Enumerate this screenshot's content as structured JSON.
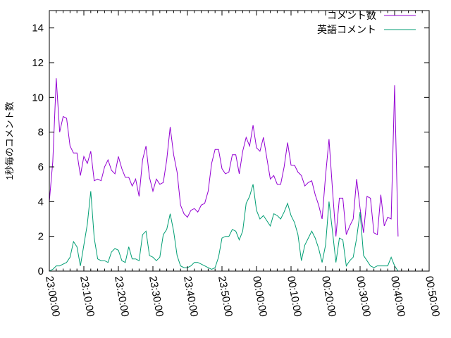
{
  "chart_data": {
    "type": "line",
    "ylabel": "1秒毎のコメント数",
    "xlabel": "",
    "ylim": [
      0,
      15
    ],
    "yticks": [
      "0",
      "2",
      "4",
      "6",
      "8",
      "10",
      "12",
      "14"
    ],
    "xticks": [
      "23:00:00",
      "23:10:00",
      "23:20:00",
      "23:30:00",
      "23:40:00",
      "23:50:00",
      "00:00:00",
      "00:10:00",
      "00:20:00",
      "00:30:00",
      "00:40:00",
      "00:50:00"
    ],
    "xlim_minutes": [
      0,
      110
    ],
    "legend_position": "top-right",
    "series": [
      {
        "name": "コメント数",
        "color": "#9400d3",
        "x_minutes": [
          0,
          1,
          2,
          3,
          4,
          5,
          6,
          7,
          8,
          9,
          10,
          11,
          12,
          13,
          14,
          15,
          16,
          17,
          18,
          19,
          20,
          21,
          22,
          23,
          24,
          25,
          26,
          27,
          28,
          29,
          30,
          31,
          32,
          33,
          34,
          35,
          36,
          37,
          38,
          39,
          40,
          41,
          42,
          43,
          44,
          45,
          46,
          47,
          48,
          49,
          50,
          51,
          52,
          53,
          54,
          55,
          56,
          57,
          58,
          59,
          60,
          61,
          62,
          63,
          64,
          65,
          66,
          67,
          68,
          69,
          70,
          71,
          72,
          73,
          74,
          75,
          76,
          77,
          78,
          79,
          80,
          81,
          82,
          83,
          84,
          85,
          86,
          87,
          88,
          89,
          90,
          91,
          92,
          93,
          94,
          95,
          96,
          97,
          98,
          99,
          100,
          101
        ],
        "values": [
          4.0,
          6.3,
          11.1,
          8.0,
          8.9,
          8.8,
          7.2,
          6.8,
          6.8,
          5.5,
          6.6,
          6.2,
          6.9,
          5.2,
          5.3,
          5.2,
          6.0,
          6.4,
          5.8,
          5.6,
          6.6,
          5.9,
          5.4,
          5.4,
          4.9,
          5.3,
          4.3,
          6.4,
          7.2,
          5.4,
          4.6,
          5.3,
          5.0,
          5.1,
          6.4,
          8.3,
          6.7,
          5.7,
          3.8,
          3.3,
          3.1,
          3.5,
          3.6,
          3.4,
          3.8,
          3.9,
          4.6,
          6.2,
          7.0,
          7.0,
          5.9,
          5.6,
          5.7,
          6.7,
          6.7,
          5.6,
          6.9,
          7.7,
          7.2,
          8.4,
          7.1,
          6.9,
          7.7,
          6.5,
          5.3,
          5.5,
          5.0,
          5.0,
          6.0,
          7.4,
          6.1,
          6.1,
          5.7,
          5.5,
          4.9,
          5.1,
          5.2,
          4.4,
          3.8,
          3.0,
          5.5,
          7.6,
          4.7,
          2.0,
          4.2,
          4.2,
          2.1,
          2.6,
          3.0,
          5.3,
          3.6,
          2.2,
          4.3,
          4.2,
          2.2,
          2.1,
          4.4,
          2.6,
          3.1,
          3.0,
          10.7,
          2.0
        ]
      },
      {
        "name": "英語コメント",
        "color": "#009e73",
        "x_minutes": [
          0,
          1,
          2,
          3,
          4,
          5,
          6,
          7,
          8,
          9,
          10,
          11,
          12,
          13,
          14,
          15,
          16,
          17,
          18,
          19,
          20,
          21,
          22,
          23,
          24,
          25,
          26,
          27,
          28,
          29,
          30,
          31,
          32,
          33,
          34,
          35,
          36,
          37,
          38,
          39,
          40,
          41,
          42,
          43,
          44,
          45,
          46,
          47,
          48,
          49,
          50,
          51,
          52,
          53,
          54,
          55,
          56,
          57,
          58,
          59,
          60,
          61,
          62,
          63,
          64,
          65,
          66,
          67,
          68,
          69,
          70,
          71,
          72,
          73,
          74,
          75,
          76,
          77,
          78,
          79,
          80,
          81,
          82,
          83,
          84,
          85,
          86,
          87,
          88,
          89,
          90,
          91,
          92,
          93,
          94,
          95,
          96,
          97,
          98,
          99,
          100,
          101
        ],
        "values": [
          0.0,
          0.1,
          0.3,
          0.3,
          0.4,
          0.5,
          0.8,
          1.7,
          1.4,
          0.3,
          1.5,
          2.7,
          4.6,
          1.9,
          0.7,
          0.6,
          0.6,
          0.5,
          1.1,
          1.3,
          1.2,
          0.6,
          0.5,
          1.4,
          0.7,
          0.7,
          0.6,
          2.1,
          2.3,
          0.9,
          0.8,
          0.6,
          0.8,
          2.1,
          2.4,
          3.3,
          2.3,
          0.9,
          0.3,
          0.2,
          0.2,
          0.3,
          0.5,
          0.5,
          0.4,
          0.3,
          0.2,
          0.1,
          0.2,
          0.8,
          1.9,
          2.0,
          2.0,
          2.4,
          2.3,
          1.8,
          2.3,
          3.9,
          4.3,
          5.0,
          3.5,
          3.0,
          3.2,
          2.9,
          2.6,
          3.3,
          3.2,
          3.0,
          3.4,
          3.9,
          3.2,
          2.8,
          2.1,
          0.6,
          1.5,
          1.9,
          2.3,
          1.9,
          1.3,
          0.5,
          1.5,
          4.0,
          2.3,
          0.5,
          1.9,
          1.8,
          0.3,
          0.6,
          0.8,
          1.9,
          3.4,
          0.9,
          0.6,
          0.3,
          0.2,
          0.3,
          0.3,
          0.3,
          0.3,
          0.8,
          0.3,
          0.0
        ]
      }
    ]
  }
}
